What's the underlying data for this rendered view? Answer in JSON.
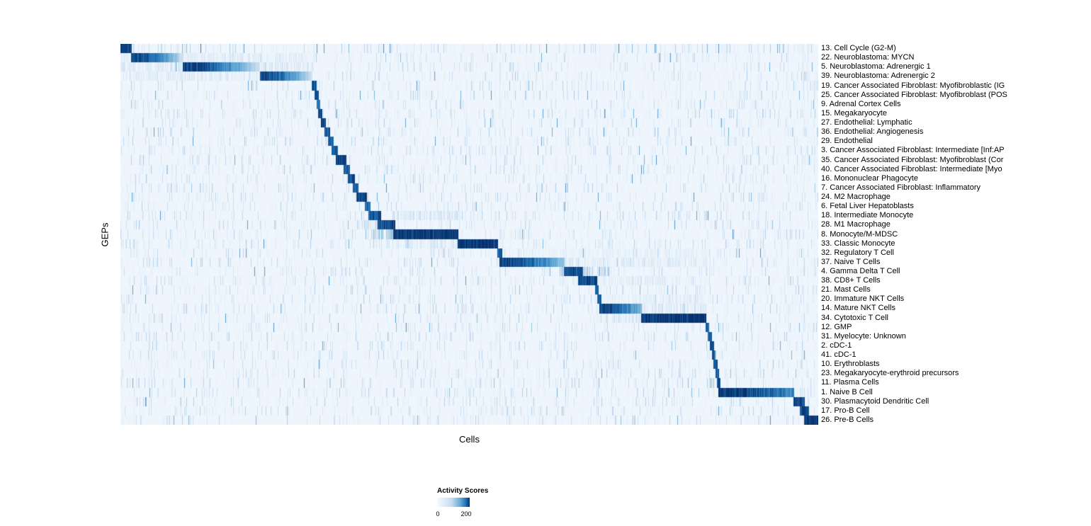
{
  "chart_data": {
    "type": "heatmap",
    "title": "",
    "xlabel": "Cells",
    "ylabel": "GEPs",
    "colorbar": {
      "title": "Activity Scores",
      "tick_labels": [
        "0",
        "200"
      ],
      "tick_values": [
        0,
        200
      ],
      "scale_max": 210
    },
    "colormap_hex": [
      "#f7fbff",
      "#c6dbef",
      "#6baed6",
      "#2171b5",
      "#08306b"
    ],
    "background_score": 10,
    "noise": {
      "density": 0.22,
      "max_score": 55
    },
    "rows": [
      {
        "label": "13. Cell Cycle (G2-M)",
        "block": [
          0.0,
          0.016
        ],
        "peak": 200,
        "fade": 0,
        "scatter": {
          "density": 0.05,
          "score": 130
        }
      },
      {
        "label": "22. Neuroblastoma: MYCN",
        "block": [
          0.016,
          0.09
        ],
        "peak": 200,
        "fade": 0.8,
        "bands": [
          [
            0.0,
            0.27,
            25
          ]
        ]
      },
      {
        "label": "5. Neuroblastoma: Adrenergic 1",
        "block": [
          0.09,
          0.2
        ],
        "peak": 200,
        "fade": 0.8,
        "bands": [
          [
            0.0,
            0.27,
            30
          ]
        ]
      },
      {
        "label": "39. Neuroblastoma: Adrenergic 2",
        "block": [
          0.2,
          0.275
        ],
        "peak": 190,
        "fade": 0.8,
        "bands": [
          [
            0.0,
            0.27,
            25
          ]
        ]
      },
      {
        "label": "19. Cancer Associated Fibroblast: Myofibroblastic (IG",
        "block": [
          0.275,
          0.281
        ],
        "peak": 185
      },
      {
        "label": "25. Cancer Associated Fibroblast: Myofibroblast (POS",
        "block": [
          0.279,
          0.284
        ],
        "peak": 180
      },
      {
        "label": "9. Adrenal Cortex Cells",
        "block": [
          0.282,
          0.286
        ],
        "peak": 160
      },
      {
        "label": "15. Megakaryocyte",
        "block": [
          0.284,
          0.289
        ],
        "peak": 185
      },
      {
        "label": "27. Endothelial: Lymphatic",
        "block": [
          0.288,
          0.294
        ],
        "peak": 190
      },
      {
        "label": "36. Endothelial: Angiogenesis",
        "block": [
          0.293,
          0.3
        ],
        "peak": 180
      },
      {
        "label": "29. Endothelial",
        "block": [
          0.298,
          0.305
        ],
        "peak": 170
      },
      {
        "label": "3. Cancer Associated Fibroblast: Intermediate [Inf:AP",
        "block": [
          0.303,
          0.311
        ],
        "peak": 180
      },
      {
        "label": "35. Cancer Associated Fibroblast: Myofibroblast (Cor",
        "block": [
          0.309,
          0.323
        ],
        "peak": 190
      },
      {
        "label": "40. Cancer Associated Fibroblast: Intermediate [Myo",
        "block": [
          0.32,
          0.328
        ],
        "peak": 170
      },
      {
        "label": "16. Mononuclear Phagocyte",
        "block": [
          0.326,
          0.336
        ],
        "peak": 180
      },
      {
        "label": "7. Cancer Associated Fibroblast: Inflammatory",
        "block": [
          0.333,
          0.341
        ],
        "peak": 170
      },
      {
        "label": "24. M2 Macrophage",
        "block": [
          0.339,
          0.353
        ],
        "peak": 190
      },
      {
        "label": "6. Fetal Liver Hepatoblasts",
        "block": [
          0.351,
          0.358
        ],
        "peak": 170
      },
      {
        "label": "18. Intermediate Monocyte",
        "block": [
          0.356,
          0.373
        ],
        "peak": 180,
        "bands": [
          [
            0.39,
            0.484,
            35
          ]
        ]
      },
      {
        "label": "28. M1 Macrophage",
        "block": [
          0.369,
          0.393
        ],
        "peak": 190,
        "bands": [
          [
            0.34,
            0.37,
            50
          ]
        ]
      },
      {
        "label": "8. Monocyte/M-MDSC",
        "block": [
          0.391,
          0.484
        ],
        "peak": 205,
        "bands": [
          [
            0.35,
            0.391,
            70
          ]
        ]
      },
      {
        "label": "33. Classic Monocyte",
        "block": [
          0.484,
          0.541
        ],
        "peak": 205,
        "bands": [
          [
            0.39,
            0.484,
            30
          ]
        ]
      },
      {
        "label": "32. Regulatory T Cell",
        "block": [
          0.541,
          0.547
        ],
        "peak": 170,
        "bands": [
          [
            0.54,
            0.84,
            18
          ]
        ]
      },
      {
        "label": "37. Naive T Cells",
        "block": [
          0.544,
          0.636
        ],
        "peak": 195,
        "fade": 0.6,
        "bands": [
          [
            0.54,
            0.84,
            25
          ]
        ]
      },
      {
        "label": "4. Gamma Delta T Cell",
        "block": [
          0.636,
          0.662
        ],
        "peak": 180,
        "bands": [
          [
            0.63,
            0.7,
            60
          ]
        ]
      },
      {
        "label": "38. CD8+ T Cells",
        "block": [
          0.656,
          0.683
        ],
        "peak": 195,
        "bands": [
          [
            0.63,
            0.84,
            20
          ]
        ]
      },
      {
        "label": "21. Mast Cells",
        "block": [
          0.681,
          0.685
        ],
        "peak": 180
      },
      {
        "label": "20. Immature NKT Cells",
        "block": [
          0.684,
          0.689
        ],
        "peak": 170,
        "bands": [
          [
            0.68,
            0.84,
            20
          ]
        ]
      },
      {
        "label": "14. Mature NKT Cells",
        "block": [
          0.687,
          0.747
        ],
        "peak": 190,
        "fade": 0.5,
        "bands": [
          [
            0.747,
            0.84,
            30
          ]
        ]
      },
      {
        "label": "34. Cytotoxic T Cell",
        "block": [
          0.747,
          0.839
        ],
        "peak": 205,
        "bands": [
          [
            0.68,
            0.747,
            30
          ]
        ]
      },
      {
        "label": "12. GMP",
        "block": [
          0.839,
          0.843
        ],
        "peak": 170
      },
      {
        "label": "31. Myelocyte: Unknown",
        "block": [
          0.842,
          0.847
        ],
        "peak": 170
      },
      {
        "label": "2. cDC-1",
        "block": [
          0.845,
          0.85
        ],
        "peak": 180
      },
      {
        "label": "41. cDC-1",
        "block": [
          0.848,
          0.852
        ],
        "peak": 170
      },
      {
        "label": "10. Erythroblasts",
        "block": [
          0.85,
          0.855
        ],
        "peak": 180
      },
      {
        "label": "23. Megakaryocyte-erythroid precursors",
        "block": [
          0.853,
          0.857
        ],
        "peak": 170
      },
      {
        "label": "11. Plasma Cells",
        "block": [
          0.855,
          0.859
        ],
        "peak": 180
      },
      {
        "label": "1. Naive B Cell",
        "block": [
          0.857,
          0.965
        ],
        "peak": 205,
        "fade": 0.35
      },
      {
        "label": "30. Plasmacytoid Dendritic Cell",
        "block": [
          0.965,
          0.98
        ],
        "peak": 195
      },
      {
        "label": "17. Pro-B Cell",
        "block": [
          0.974,
          0.986
        ],
        "peak": 185
      },
      {
        "label": "26. Pre-B Cells",
        "block": [
          0.98,
          1.0
        ],
        "peak": 205
      }
    ]
  }
}
